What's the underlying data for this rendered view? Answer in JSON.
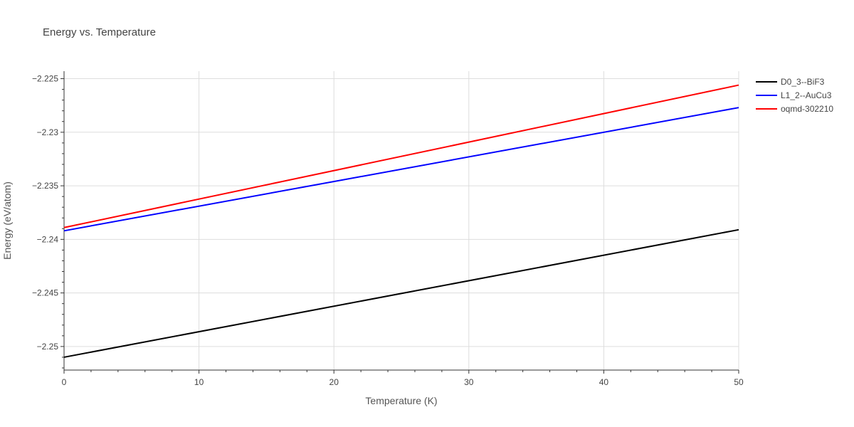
{
  "chart_data": {
    "type": "line",
    "title": "Energy vs. Temperature",
    "xlabel": "Temperature (K)",
    "ylabel": "Energy (eV/atom)",
    "xlim": [
      0,
      50
    ],
    "ylim": [
      -2.2522,
      -2.2243
    ],
    "xticks": [
      0,
      10,
      20,
      30,
      40,
      50
    ],
    "xtick_labels": [
      "0",
      "10",
      "20",
      "30",
      "40",
      "50"
    ],
    "yticks": [
      -2.25,
      -2.245,
      -2.24,
      -2.235,
      -2.23,
      -2.225
    ],
    "ytick_labels": [
      "−2.25",
      "−2.245",
      "−2.24",
      "−2.235",
      "−2.23",
      "−2.225"
    ],
    "grid": true,
    "legend_position": "top-right",
    "series": [
      {
        "name": "D0_3--BiF3",
        "color": "#000000",
        "x": [
          0,
          50
        ],
        "y": [
          -2.251,
          -2.2391
        ]
      },
      {
        "name": "L1_2--AuCu3",
        "color": "#0000ff",
        "x": [
          0,
          50
        ],
        "y": [
          -2.2392,
          -2.2277
        ]
      },
      {
        "name": "oqmd-302210",
        "color": "#ff0000",
        "x": [
          0,
          50
        ],
        "y": [
          -2.2389,
          -2.2256
        ]
      }
    ]
  }
}
